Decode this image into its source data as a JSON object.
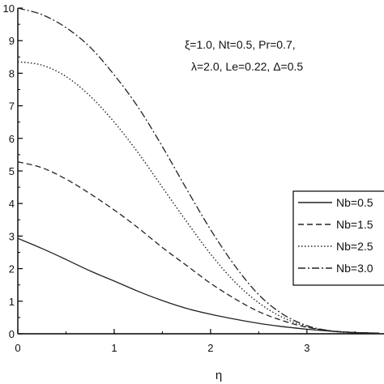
{
  "chart_data": {
    "type": "line",
    "title": "",
    "xlabel": "η",
    "ylabel": "",
    "xlim": [
      0,
      3.8
    ],
    "ylim": [
      0,
      10
    ],
    "xticks": [
      "0",
      "1",
      "2",
      "3"
    ],
    "yticks": [
      "0",
      "1",
      "2",
      "3",
      "4",
      "5",
      "6",
      "7",
      "8",
      "9",
      "10"
    ],
    "grid": false,
    "legend_position": "right",
    "annotation": {
      "line1": "ξ=1.0, Nt=0.5, Pr=0.7,",
      "line2": "λ=2.0, Le=0.22, Δ=0.5"
    },
    "x": [
      0,
      0.25,
      0.5,
      0.75,
      1.0,
      1.25,
      1.5,
      1.75,
      2.0,
      2.25,
      2.5,
      2.75,
      3.0,
      3.25,
      3.5,
      3.75
    ],
    "series": [
      {
        "name": "Nb=0.5",
        "dash": "solid",
        "values": [
          2.93,
          2.62,
          2.28,
          1.93,
          1.62,
          1.3,
          1.02,
          0.78,
          0.6,
          0.45,
          0.32,
          0.22,
          0.14,
          0.08,
          0.04,
          0.02
        ]
      },
      {
        "name": "Nb=1.5",
        "dash": "dashed",
        "values": [
          5.28,
          5.1,
          4.75,
          4.3,
          3.8,
          3.25,
          2.65,
          2.1,
          1.55,
          1.08,
          0.68,
          0.4,
          0.2,
          0.09,
          0.04,
          0.02
        ]
      },
      {
        "name": "Nb=2.5",
        "dash": "dotted",
        "values": [
          8.35,
          8.25,
          7.9,
          7.3,
          6.5,
          5.55,
          4.5,
          3.45,
          2.45,
          1.6,
          0.95,
          0.5,
          0.22,
          0.08,
          0.03,
          0.01
        ]
      },
      {
        "name": "Nb=3.0",
        "dash": "dashdot",
        "values": [
          10.0,
          9.8,
          9.4,
          8.8,
          7.95,
          6.95,
          5.75,
          4.45,
          3.2,
          2.1,
          1.2,
          0.6,
          0.25,
          0.09,
          0.03,
          0.01
        ]
      }
    ]
  }
}
